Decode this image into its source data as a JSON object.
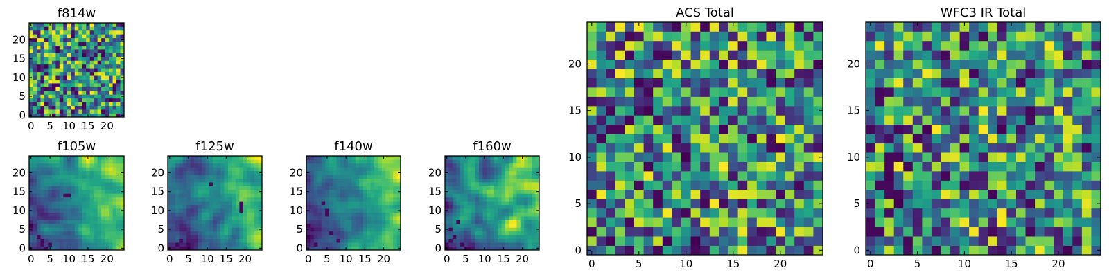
{
  "figure": {
    "colormap": "viridis",
    "background": "#ffffff"
  },
  "chart_data": [
    {
      "id": "f814w",
      "type": "heatmap",
      "title": "f814w",
      "shape": [
        25,
        25
      ],
      "xlim": [
        0,
        24
      ],
      "ylim": [
        0,
        24
      ],
      "xticks": [
        0,
        5,
        10,
        15,
        20
      ],
      "yticks": [
        0,
        5,
        10,
        15,
        20
      ],
      "texture": "fine-noise",
      "seed": 11,
      "low_pixels": [
        [
          1,
          20
        ],
        [
          4,
          23
        ],
        [
          7,
          18
        ],
        [
          11,
          15
        ],
        [
          2,
          13
        ],
        [
          9,
          10
        ],
        [
          4,
          7
        ],
        [
          12,
          6
        ],
        [
          8,
          4
        ],
        [
          3,
          1
        ],
        [
          14,
          3
        ],
        [
          17,
          12
        ],
        [
          22,
          7
        ],
        [
          19,
          1
        ],
        [
          6,
          0
        ]
      ]
    },
    {
      "id": "f105w",
      "type": "heatmap",
      "title": "f105w",
      "shape": [
        25,
        25
      ],
      "xlim": [
        0,
        24
      ],
      "ylim": [
        0,
        24
      ],
      "xticks": [
        0,
        5,
        10,
        15,
        20
      ],
      "yticks": [
        0,
        5,
        10,
        15,
        20
      ],
      "texture": "smooth",
      "seed": 23,
      "low_pixels": [
        [
          3,
          1
        ],
        [
          4,
          0
        ],
        [
          3,
          2
        ],
        [
          5,
          1
        ],
        [
          9,
          14
        ],
        [
          10,
          14
        ],
        [
          2,
          3
        ]
      ]
    },
    {
      "id": "f125w",
      "type": "heatmap",
      "title": "f125w",
      "shape": [
        25,
        25
      ],
      "xlim": [
        0,
        24
      ],
      "ylim": [
        0,
        24
      ],
      "xticks": [
        0,
        5,
        10,
        15,
        20
      ],
      "yticks": [
        0,
        5,
        10,
        15,
        20
      ],
      "texture": "smooth",
      "seed": 37,
      "low_pixels": [
        [
          19,
          10
        ],
        [
          19,
          11
        ],
        [
          19,
          12
        ],
        [
          3,
          2
        ],
        [
          2,
          1
        ],
        [
          11,
          17
        ]
      ]
    },
    {
      "id": "f140w",
      "type": "heatmap",
      "title": "f140w",
      "shape": [
        25,
        25
      ],
      "xlim": [
        0,
        24
      ],
      "ylim": [
        0,
        24
      ],
      "xticks": [
        0,
        5,
        10,
        15,
        20
      ],
      "yticks": [
        0,
        5,
        10,
        15,
        20
      ],
      "texture": "smooth",
      "seed": 41,
      "low_pixels": [
        [
          5,
          9
        ],
        [
          5,
          10
        ],
        [
          0,
          6
        ],
        [
          1,
          5
        ],
        [
          2,
          1
        ],
        [
          6,
          4
        ],
        [
          4,
          12
        ],
        [
          8,
          2
        ]
      ]
    },
    {
      "id": "f160w",
      "type": "heatmap",
      "title": "f160w",
      "shape": [
        25,
        25
      ],
      "xlim": [
        0,
        24
      ],
      "ylim": [
        0,
        24
      ],
      "xticks": [
        0,
        5,
        10,
        15,
        20
      ],
      "yticks": [
        0,
        5,
        10,
        15,
        20
      ],
      "texture": "smooth",
      "seed": 53,
      "low_pixels": [
        [
          5,
          0
        ],
        [
          6,
          0
        ],
        [
          4,
          1
        ],
        [
          2,
          3
        ],
        [
          1,
          2
        ],
        [
          0,
          1
        ],
        [
          1,
          5
        ],
        [
          3,
          7
        ]
      ]
    },
    {
      "id": "acs_total",
      "type": "heatmap",
      "title": "ACS Total",
      "shape": [
        25,
        25
      ],
      "xlim": [
        0,
        24
      ],
      "ylim": [
        0,
        24
      ],
      "xticks": [
        0,
        5,
        10,
        15,
        20
      ],
      "yticks": [
        0,
        5,
        10,
        15,
        20
      ],
      "texture": "coarse",
      "seed": 67,
      "low_pixels": [
        [
          4,
          23
        ],
        [
          7,
          21
        ],
        [
          6,
          17
        ],
        [
          3,
          13
        ],
        [
          9,
          12
        ],
        [
          6,
          9
        ],
        [
          5,
          7
        ],
        [
          7,
          6
        ],
        [
          7,
          5
        ],
        [
          10,
          4
        ],
        [
          4,
          3
        ],
        [
          11,
          0
        ]
      ]
    },
    {
      "id": "wfc3_ir_total",
      "type": "heatmap",
      "title": "WFC3 IR Total",
      "shape": [
        25,
        25
      ],
      "xlim": [
        0,
        24
      ],
      "ylim": [
        0,
        24
      ],
      "xticks": [
        0,
        5,
        10,
        15,
        20
      ],
      "yticks": [
        0,
        5,
        10,
        15,
        20
      ],
      "texture": "coarse",
      "seed": 79,
      "low_pixels": [
        [
          12,
          23
        ],
        [
          1,
          17
        ],
        [
          3,
          13
        ],
        [
          4,
          9
        ],
        [
          3,
          10
        ],
        [
          2,
          9
        ],
        [
          1,
          7
        ],
        [
          3,
          6
        ],
        [
          0,
          3
        ],
        [
          1,
          2
        ],
        [
          0,
          2
        ],
        [
          4,
          1
        ],
        [
          13,
          2
        ],
        [
          17,
          2
        ],
        [
          11,
          19
        ],
        [
          16,
          18
        ],
        [
          2,
          7
        ]
      ]
    }
  ]
}
